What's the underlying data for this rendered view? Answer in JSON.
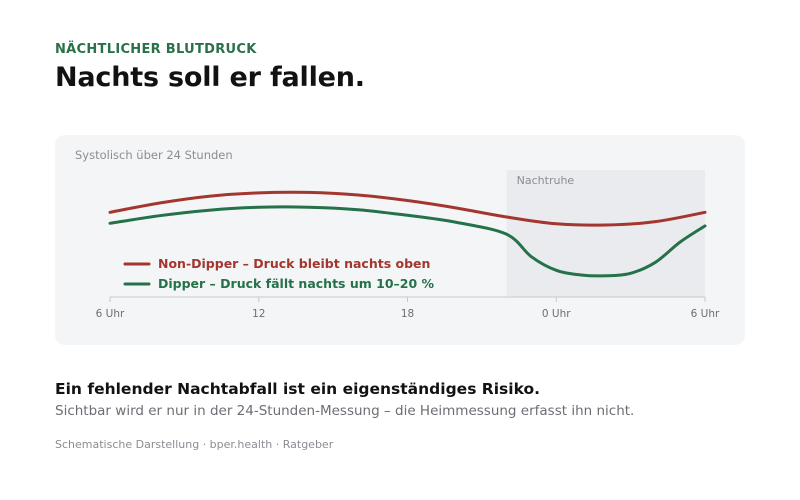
{
  "header": {
    "eyebrow": "NÄCHTLICHER BLUTDRUCK",
    "headline": "Nachts soll er fallen."
  },
  "card": {
    "label": "Systolisch über 24 Stunden"
  },
  "chart_data": {
    "type": "line",
    "x_ticks": [
      "6 Uhr",
      "12",
      "18",
      "0 Uhr",
      "6 Uhr"
    ],
    "x_range_hours": [
      6,
      30
    ],
    "shaded_region": {
      "label": "Nachtruhe",
      "from_hour": 22,
      "to_hour": 30
    },
    "grid": false,
    "legend_position": "bottom-left",
    "series": [
      {
        "name": "Non-Dipper – Druck bleibt nachts oben",
        "color": "#a3362e",
        "x": [
          6,
          8,
          10,
          12,
          14,
          16,
          18,
          20,
          22,
          24,
          26,
          28,
          30
        ],
        "y": [
          100,
          102.2,
          103.8,
          104.6,
          104.7,
          104.1,
          102.8,
          101.0,
          98.9,
          97.3,
          97.0,
          97.8,
          100
        ]
      },
      {
        "name": "Dipper – Druck fällt nachts um 10–20 %",
        "color": "#25714a",
        "x": [
          6,
          8,
          10,
          12,
          14,
          16,
          18,
          20,
          22,
          23,
          24,
          25,
          26,
          27,
          28,
          29,
          30
        ],
        "y": [
          97.4,
          99.2,
          100.5,
          101.2,
          101.2,
          100.6,
          99.3,
          97.6,
          94.8,
          89.5,
          86.3,
          85.2,
          85.0,
          85.6,
          88.2,
          93.0,
          96.8
        ]
      }
    ]
  },
  "footer": {
    "takeaway": "Ein fehlender Nachtabfall ist ein eigenständiges Risiko.",
    "subtext": "Sichtbar wird er nur in der 24-Stunden-Messung – die Heimmessung erfasst ihn nicht.",
    "source": "Schematische Darstellung · bper.health · Ratgeber"
  }
}
